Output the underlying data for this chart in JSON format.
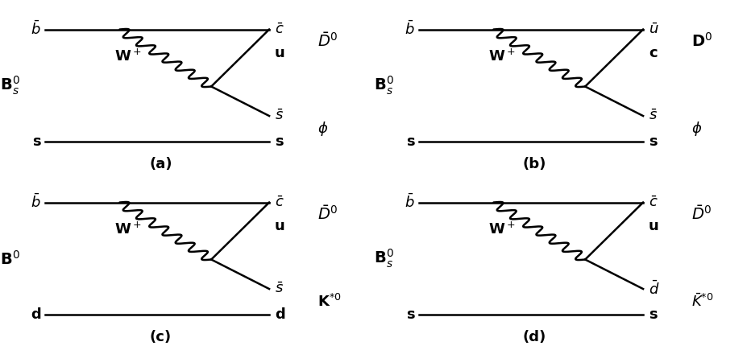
{
  "diagrams": [
    {
      "label": "(a)",
      "B_label": "B$_s^0$",
      "top_left": "$\\bar{b}$",
      "top_right": "$\\bar{c}$",
      "bottom_left": "s",
      "bottom_right": "s",
      "upper_decay1": "u",
      "upper_decay2": "$\\bar{s}$",
      "meson1": "$\\bar{D}^0$",
      "meson2": "$\\phi$"
    },
    {
      "label": "(b)",
      "B_label": "B$_s^0$",
      "top_left": "$\\bar{b}$",
      "top_right": "$\\bar{u}$",
      "bottom_left": "s",
      "bottom_right": "s",
      "upper_decay1": "c",
      "upper_decay2": "$\\bar{s}$",
      "meson1": "D$^0$",
      "meson2": "$\\phi$"
    },
    {
      "label": "(c)",
      "B_label": "B$^0$",
      "top_left": "$\\bar{b}$",
      "top_right": "$\\bar{c}$",
      "bottom_left": "d",
      "bottom_right": "d",
      "upper_decay1": "u",
      "upper_decay2": "$\\bar{s}$",
      "meson1": "$\\bar{D}^0$",
      "meson2": "K$^{*0}$"
    },
    {
      "label": "(d)",
      "B_label": "B$_s^0$",
      "top_left": "$\\bar{b}$",
      "top_right": "$\\bar{c}$",
      "bottom_left": "s",
      "bottom_right": "s",
      "upper_decay1": "u",
      "upper_decay2": "$\\bar{d}$",
      "meson1": "$\\bar{D}^0$",
      "meson2": "$\\bar{K}^{*0}$"
    }
  ],
  "fig_width": 9.28,
  "fig_height": 4.3,
  "lw": 1.8,
  "font_size": 13,
  "font_size_meson": 14
}
